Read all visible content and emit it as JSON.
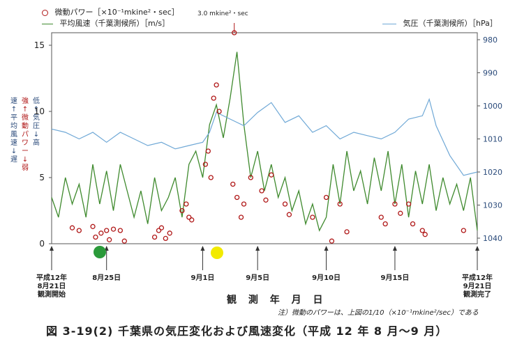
{
  "legend": {
    "micro": "微動パワー［×10⁻¹mkine²・sec］",
    "wind": "平均風速（千葉測候所）［m/s］",
    "pressure": "気圧（千葉測候所）［hPa］",
    "peak_label": "3.0 mkine²・sec"
  },
  "left_desc": {
    "col1": "速↑ 平均風速 ↓遅",
    "col2": "強↑ 微動パワー ↓弱",
    "col3": "低↑ 気 圧 ↓高"
  },
  "x_title": "観 測 年 月 日",
  "note": "注）微動のパワーは、上図の1/10（×10⁻¹mkine²/sec）である",
  "caption": "図 3-19(2)  千葉県の気圧変化および風速変化（平成 12 年 8 月〜9 月）",
  "markers": [
    {
      "name": "green-marker",
      "color": "#2a9a3a"
    },
    {
      "name": "yellow-marker",
      "color": "#f2ea00"
    }
  ],
  "chart_data": {
    "type": "line",
    "x_unit": "days from Aug 21 2000",
    "xlim": [
      0,
      31
    ],
    "ylim_left": [
      0,
      15
    ],
    "left_ticks": [
      "0",
      "5",
      "10",
      "15"
    ],
    "ylim_right": [
      1040,
      980
    ],
    "right_ticks": [
      "980",
      "990",
      "1000",
      "1010",
      "1020",
      "1030",
      "1040"
    ],
    "x_labels": [
      {
        "x": 0,
        "text": "平成12年\n8月21日\n観測開始"
      },
      {
        "x": 4,
        "text": "8月25日"
      },
      {
        "x": 11,
        "text": "9月1日"
      },
      {
        "x": 15,
        "text": "9月5日"
      },
      {
        "x": 20,
        "text": "9月10日"
      },
      {
        "x": 25,
        "text": "9月15日"
      },
      {
        "x": 31,
        "text": "平成12年\n9月21日\n観測完了"
      }
    ],
    "series": [
      {
        "name": "平均風速（千葉測候所）",
        "axis": "left",
        "color": "#3f8a2e",
        "x": [
          0,
          0.5,
          1,
          1.5,
          2,
          2.5,
          3,
          3.5,
          4,
          4.5,
          5,
          5.5,
          6,
          6.5,
          7,
          7.5,
          8,
          8.5,
          9,
          9.5,
          10,
          10.5,
          11,
          11.5,
          12,
          12.5,
          13,
          13.5,
          14,
          14.5,
          15,
          15.5,
          16,
          16.5,
          17,
          17.5,
          18,
          18.5,
          19,
          19.5,
          20,
          20.5,
          21,
          21.5,
          22,
          22.5,
          23,
          23.5,
          24,
          24.5,
          25,
          25.5,
          26,
          26.5,
          27,
          27.5,
          28,
          28.5,
          29,
          29.5,
          30,
          30.5,
          31
        ],
        "y": [
          3.5,
          2,
          5,
          3,
          4.5,
          2,
          6,
          3,
          5.5,
          2.5,
          6,
          4,
          2,
          4,
          1.5,
          5,
          2.5,
          3.5,
          5,
          2,
          6,
          7,
          5,
          9,
          10.5,
          8,
          11,
          14.5,
          9,
          5,
          7,
          4,
          6,
          3.5,
          5,
          2.5,
          4,
          1.5,
          3,
          1,
          2,
          6,
          3,
          7,
          4,
          5.5,
          3,
          6.5,
          4,
          7,
          3,
          6,
          2,
          5.5,
          3,
          6,
          2.5,
          5,
          3,
          4.5,
          2.5,
          5,
          1
        ]
      },
      {
        "name": "気圧（千葉測候所）",
        "axis": "right",
        "color": "#6fa8d6",
        "x": [
          0,
          1,
          2,
          3,
          4,
          5,
          6,
          7,
          8,
          9,
          10,
          11,
          11.5,
          12,
          13,
          14,
          15,
          16,
          17,
          18,
          19,
          20,
          21,
          22,
          23,
          24,
          25,
          26,
          27,
          27.5,
          28,
          29,
          30,
          31
        ],
        "y": [
          1007,
          1008,
          1010,
          1008,
          1011,
          1008,
          1010,
          1012,
          1011,
          1013,
          1012,
          1011,
          1008,
          1002,
          1004,
          1006,
          1002,
          999,
          1005,
          1003,
          1008,
          1006,
          1010,
          1008,
          1009,
          1010,
          1008,
          1004,
          1003,
          998,
          1006,
          1015,
          1021,
          1020
        ]
      },
      {
        "name": "微動パワー",
        "axis": "left",
        "type": "scatter",
        "color": "#b01818",
        "x": [
          1.5,
          2,
          3,
          3.2,
          3.6,
          4,
          4.2,
          4.5,
          5,
          5.3,
          7.5,
          7.8,
          8,
          8.3,
          8.6,
          9.5,
          9.8,
          10,
          10.2,
          11.2,
          11.4,
          11.6,
          11.8,
          12,
          12.2,
          13.2,
          13.5,
          13.8,
          14,
          14.5,
          15.3,
          15.6,
          16,
          17,
          17.3,
          19,
          20,
          20.4,
          21,
          21.5,
          24,
          24.3,
          25,
          25.4,
          26,
          26.3,
          27,
          27.2,
          30
        ],
        "y": [
          1.2,
          1,
          1.3,
          0.5,
          0.8,
          1,
          0.3,
          1.1,
          1,
          0.2,
          0.5,
          1,
          1.2,
          0.4,
          0.8,
          2.5,
          3,
          2,
          1.8,
          6,
          7,
          5,
          11,
          12,
          10,
          4.5,
          3.5,
          2,
          3,
          5,
          4,
          3.3,
          5.2,
          3,
          2.2,
          2,
          3.5,
          0.2,
          3,
          0.9,
          2,
          1.5,
          3,
          2.3,
          3,
          1.5,
          1,
          0.7,
          1
        ]
      }
    ],
    "peak_annotation": {
      "x": 13.3,
      "value": "3.0 mkine²・sec"
    }
  }
}
